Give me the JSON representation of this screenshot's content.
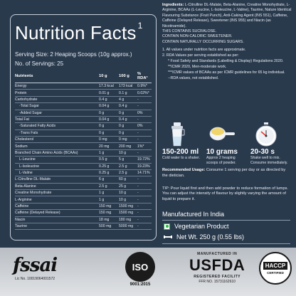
{
  "nutrition": {
    "title": "Nutrition Facts",
    "title_sup": "1",
    "serving_size": "Serving Size: 2 Heaping Scoops (10g approx.)",
    "servings": "No. of Servings: 25",
    "headers": [
      "Nutrients",
      "10 g",
      "100 g",
      "% RDA³"
    ],
    "rows": [
      {
        "name": "Energy",
        "v1": "17.3 kcal",
        "v2": "173 kcal",
        "v3": "0.9%*",
        "sub": false
      },
      {
        "name": "Protein",
        "v1": "0.01 g",
        "v2": "0.1 g",
        "v3": "0.02%*",
        "sub": false
      },
      {
        "name": "Carbohydrate",
        "v1": "0.4 g",
        "v2": "4 g",
        "v3": "-",
        "sub": false
      },
      {
        "name": "-Total Sugar",
        "v1": "0.04 g",
        "v2": "0.4 g",
        "v3": "-",
        "sub": true
      },
      {
        "name": "-Added Sugar",
        "v1": "0 g",
        "v2": "0 g",
        "v3": "0%",
        "sub": true
      },
      {
        "name": "Total Fat",
        "v1": "0.04 g",
        "v2": "0.4 g",
        "v3": "-",
        "sub": false
      },
      {
        "name": "-Saturated Fatty Acids",
        "v1": "0 g",
        "v2": "0 g",
        "v3": "0%",
        "sub": true
      },
      {
        "name": "-Trans Fats",
        "v1": "0 g",
        "v2": "0 g",
        "v3": "-",
        "sub": true
      },
      {
        "name": "Cholesterol",
        "v1": "0 mg",
        "v2": "0 mg",
        "v3": "-",
        "sub": false
      },
      {
        "name": "Sodium",
        "v1": "20 mg",
        "v2": "200 mg",
        "v3": "1%*",
        "sub": false
      },
      {
        "name": "Branched Chain Amino Acids (BCAAs)",
        "v1": "1 g",
        "v2": "10 g",
        "v3": "-",
        "sub": false
      },
      {
        "name": "L-Leucine",
        "v1": "0.5 g",
        "v2": "5 g",
        "v3": "19.72%",
        "sub": true
      },
      {
        "name": "L-Isoleucine",
        "v1": "0.25 g",
        "v2": "2.5 g",
        "v3": "19.23%",
        "sub": true
      },
      {
        "name": "L-Valine",
        "v1": "0.25 g",
        "v2": "2.5 g",
        "v3": "14.71%",
        "sub": true
      },
      {
        "name": "L-Citrulline DL-Malate",
        "v1": "6 g",
        "v2": "60 g",
        "v3": "-",
        "sub": false
      },
      {
        "name": "Beta-Alanine",
        "v1": "2.5 g",
        "v2": "25 g",
        "v3": "-",
        "sub": false
      },
      {
        "name": "Creatine Monohydrate",
        "v1": "1 g",
        "v2": "10 g",
        "v3": "-",
        "sub": false
      },
      {
        "name": "L-Arginine",
        "v1": "1 g",
        "v2": "10 g",
        "v3": "-",
        "sub": false
      },
      {
        "name": "Caffeine",
        "v1": "150 mg",
        "v2": "1500 mg",
        "v3": "-",
        "sub": false
      },
      {
        "name": "Caffeine (Delayed Release)",
        "v1": "150 mg",
        "v2": "1500 mg",
        "v3": "-",
        "sub": false
      },
      {
        "name": "Niacin",
        "v1": "18 mg",
        "v2": "180 mg",
        "v3": "-",
        "sub": false
      },
      {
        "name": "Taurine",
        "v1": "500 mg",
        "v2": "5000 mg",
        "v3": "-",
        "sub": false
      }
    ]
  },
  "ingredients": {
    "label": "Ingredients:",
    "text": "L-Citrulline DL-Malate, Beta-Alanine, Creatine Monohydrate, L-Arginine, BCAAs (L-Leucine, L-Isoleucine, L-Valine), Taurine, Nature Identical Flavouring Substance (Fruit Punch), Anti-Caking Agent (INS 551), Caffeine, Caffeine (Delayed Release), Sweetener (INS 955) and Niacin (as Nicotinamide).",
    "warnings": [
      "THIS CONTAINS SUCRALOSE.",
      "CONTAIN NON-CALORIC SWEETENER.",
      "CONTAIN NATURALLY OCCURRING SUGARS."
    ]
  },
  "notes": [
    "1. All values under nutrition facts are approximate.",
    "2. RDA Values per serving established as per:",
    "* Food Safety and Standards (Labelling & Display) Regulations 2020.",
    "**ICMR 2020, Men-moderate work.",
    "***ICMR values of BCAAs as per ICMR guidelines for 65 kg individual.",
    "--RDA values, not established."
  ],
  "usage": [
    {
      "icon": "shaker-icon",
      "value": "150-200 ml",
      "desc": "Cold water to a shaker."
    },
    {
      "icon": "scoop-icon",
      "value": "10 grams",
      "desc": "Approx 2 heaping scoops of powder."
    },
    {
      "icon": "timer-icon",
      "value": "20-30 s",
      "desc": "Shake well to mix. Consume immediately."
    }
  ],
  "recommended": {
    "label": "Recommended Usage:",
    "text": "Consume 1 serving per day or as directed by the dietician."
  },
  "tip": "TIP: Pour liquid first and then add powder to reduce formation of lumps. You can adjust the intensity of flavour by slightly varying the amount of liquid to prepare it.",
  "manufactured": "Manufactured In India",
  "veg": "Vegetarian Product",
  "net_wt": "Net Wt. 250 g (0.55 lbs)",
  "badges": {
    "fssai": {
      "word": "fssai",
      "lic": "Lic No. 10019064001572"
    },
    "iso": {
      "word": "ISO",
      "caption": "9001:2015"
    },
    "usfda": {
      "top": "MANUFACTURED IN",
      "main": "USFDA",
      "sub": "REGISTERED FACILITY",
      "ffr": "FFR NO. 15731162610"
    },
    "haccp": {
      "word": "HACCP",
      "sub": "CERTIFIED"
    }
  },
  "colors": {
    "background": "#2a3a4d",
    "veg_green": "#2fb34a",
    "band": "#d0d3d7"
  }
}
